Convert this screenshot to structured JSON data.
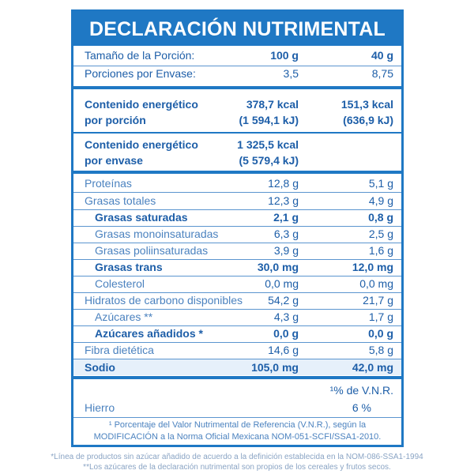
{
  "title": "DECLARACIÓN NUTRIMENTAL",
  "serving": {
    "size_label": "Tamaño de la Porción:",
    "size_col1": "100 g",
    "size_col2": "40 g",
    "portions_label": "Porciones por Envase:",
    "portions_col1": "3,5",
    "portions_col2": "8,75"
  },
  "energy_portion": {
    "label_line1": "Contenido energético",
    "label_line2": "por porción",
    "col1_kcal": "378,7 kcal",
    "col1_kj": "(1 594,1 kJ)",
    "col2_kcal": "151,3 kcal",
    "col2_kj": "(636,9 kJ)"
  },
  "energy_package": {
    "label_line1": "Contenido energético",
    "label_line2": "por envase",
    "kcal": "1 325,5 kcal",
    "kj": "(5 579,4 kJ)"
  },
  "nutrients": {
    "proteinas": {
      "label": "Proteínas",
      "v1": "12,8 g",
      "v2": "5,1 g"
    },
    "grasas_totales": {
      "label": "Grasas totales",
      "v1": "12,3 g",
      "v2": "4,9 g"
    },
    "grasas_saturadas": {
      "label": "Grasas saturadas",
      "v1": "2,1 g",
      "v2": "0,8 g"
    },
    "grasas_mono": {
      "label": "Grasas monoinsaturadas",
      "v1": "6,3 g",
      "v2": "2,5 g"
    },
    "grasas_poli": {
      "label": "Grasas poliinsaturadas",
      "v1": "3,9 g",
      "v2": "1,6 g"
    },
    "grasas_trans": {
      "label": "Grasas trans",
      "v1": "30,0 mg",
      "v2": "12,0 mg"
    },
    "colesterol": {
      "label": "Colesterol",
      "v1": "0,0 mg",
      "v2": "0,0 mg"
    },
    "hidratos": {
      "label": "Hidratos de carbono disponibles",
      "v1": "54,2 g",
      "v2": "21,7 g"
    },
    "azucares": {
      "label": "Azúcares **",
      "v1": "4,3 g",
      "v2": "1,7 g"
    },
    "azucares_anadidos": {
      "label": "Azúcares añadidos *",
      "v1": "0,0 g",
      "v2": "0,0 g"
    },
    "fibra": {
      "label": "Fibra dietética",
      "v1": "14,6 g",
      "v2": "5,8 g"
    },
    "sodio": {
      "label": "Sodio",
      "v1": "105,0 mg",
      "v2": "42,0 mg"
    }
  },
  "vnr": {
    "header": "¹% de V.N.R.",
    "hierro_label": "Hierro",
    "hierro_value": "6 %"
  },
  "footnotes": {
    "vnr_line1": "¹ Porcentaje del Valor Nutrimental de Referencia (V.N.R.), según la",
    "vnr_line2": "MODIFICACIÓN a la Norma Oficial Mexicana NOM-051-SCFI/SSA1-2010."
  },
  "outer_notes": {
    "line1": "*Línea de productos sin azúcar añadido de acuerdo a la definición establecida en la NOM-086-SSA1-1994",
    "line2": "**Los azúcares de la declaración nutrimental son propios de los cereales y frutos secos."
  },
  "colors": {
    "brand_blue": "#1f78c4",
    "text_blue": "#1d5ea8"
  }
}
